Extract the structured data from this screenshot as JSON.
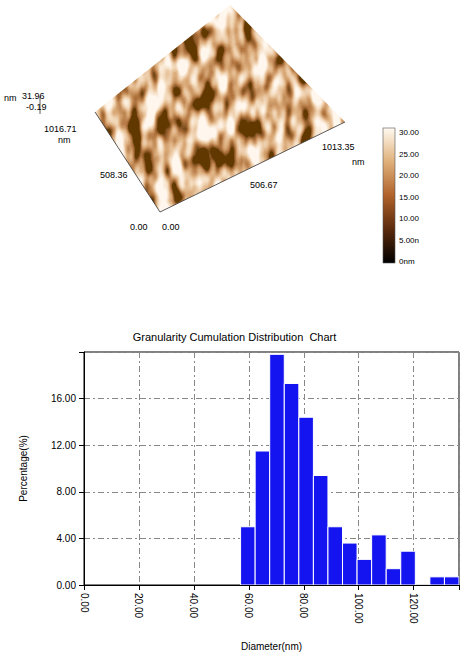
{
  "afm_image": {
    "z_unit": "nm",
    "z_max": "31.96",
    "z_min": "-0.19",
    "y_axis_labels": [
      "0.00",
      "508.36",
      "1016.71"
    ],
    "y_axis_unit": "nm",
    "x_axis_labels": [
      "0.00",
      "506.67",
      "1013.35"
    ],
    "x_axis_unit": "nm",
    "colorbar_labels": [
      "30.00",
      "25.00",
      "20.00",
      "15.00",
      "10.00",
      "5.00n",
      "0nm"
    ]
  },
  "chart_data": {
    "type": "histogram",
    "title": "Granularity Cumulation Distribution  Chart",
    "x_label": "Diameter(nm)",
    "y_label": "Percentage(%)",
    "bins": [
      57,
      62.3,
      67.6,
      72.9,
      78.2,
      83.5,
      88.8,
      94.1,
      99.4,
      104.7,
      110,
      115.3,
      120.6,
      125.9,
      131.2,
      136.5
    ],
    "values": [
      5.0,
      11.5,
      19.8,
      17.3,
      14.4,
      9.4,
      5.0,
      3.6,
      2.2,
      4.3,
      1.4,
      2.9,
      0,
      0.7,
      0.7
    ],
    "color": "#1414f0",
    "xlim": [
      0,
      136.5
    ],
    "xticks": [
      {
        "value": 0,
        "label": "0.00"
      },
      {
        "value": 20,
        "label": "20.00"
      },
      {
        "value": 40,
        "label": "40.00"
      },
      {
        "value": 60,
        "label": "60.00"
      },
      {
        "value": 80,
        "label": "80.00"
      },
      {
        "value": 100,
        "label": "100.00"
      },
      {
        "value": 120,
        "label": "120.00"
      }
    ],
    "ylim": [
      0,
      20
    ],
    "yticks": [
      {
        "value": 0,
        "label": "0.00"
      },
      {
        "value": 4,
        "label": "4.00"
      },
      {
        "value": 8,
        "label": "8.00"
      },
      {
        "value": 12,
        "label": "12.00"
      },
      {
        "value": 16,
        "label": "16.00"
      }
    ],
    "grid": true
  }
}
